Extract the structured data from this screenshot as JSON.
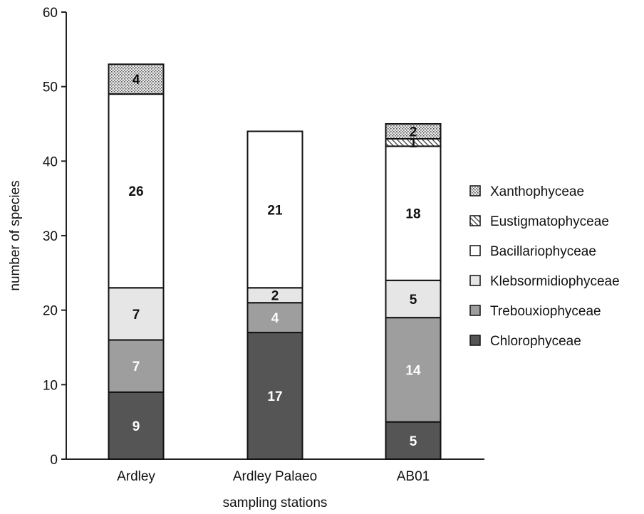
{
  "chart_data": {
    "type": "bar",
    "stacked": true,
    "title": "",
    "xlabel": "sampling stations",
    "ylabel": "number of species",
    "ylim": [
      0,
      60
    ],
    "yticks": [
      0,
      10,
      20,
      30,
      40,
      50,
      60
    ],
    "grid": false,
    "legend_position": "right",
    "categories": [
      "Ardley",
      "Ardley Palaeo",
      "AB01"
    ],
    "series": [
      {
        "name": "Chlorophyceae",
        "values": [
          9,
          17,
          5
        ],
        "color": "#555555",
        "pattern": "solid",
        "label_color": "#ffffff"
      },
      {
        "name": "Trebouxiophyceae",
        "values": [
          7,
          4,
          14
        ],
        "color": "#9e9e9e",
        "pattern": "solid",
        "label_color": "#ffffff"
      },
      {
        "name": "Klebsormidiophyceae",
        "values": [
          7,
          2,
          5
        ],
        "color": "#e6e6e6",
        "pattern": "solid",
        "label_color": "#111111"
      },
      {
        "name": "Bacillariophyceae",
        "values": [
          26,
          21,
          18
        ],
        "color": "#ffffff",
        "pattern": "solid",
        "label_color": "#111111"
      },
      {
        "name": "Eustigmatophyceae",
        "values": [
          0,
          0,
          1
        ],
        "color": "#ffffff",
        "pattern": "hatch",
        "label_color": "#111111"
      },
      {
        "name": "Xanthophyceae",
        "values": [
          4,
          0,
          2
        ],
        "color": "#dcdcdc",
        "pattern": "dots",
        "label_color": "#111111"
      }
    ]
  }
}
